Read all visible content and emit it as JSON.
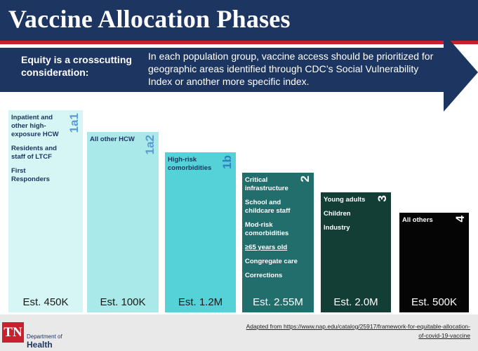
{
  "header": {
    "title": "Vaccine Allocation Phases"
  },
  "equity": {
    "label": "Equity is a crosscutting consideration:",
    "text": "In each population group, vaccine access should be prioritized for geographic areas identified through CDC’s Social Vulnerability Index or another more specific index."
  },
  "colors": {
    "navy": "#1d3561",
    "red": "#c8202f",
    "phase_1a1": "#d6f5f5",
    "phase_1a2": "#a9e9ea",
    "phase_1b": "#55d1d8",
    "phase_2": "#216e6d",
    "phase_3": "#123e36",
    "phase_4": "#050505"
  },
  "phases": [
    {
      "phase": "1a1",
      "items": [
        "Inpatient and other high-exposure HCW",
        "Residents and staff of LTCF",
        "First Responders"
      ],
      "estimate": "Est. 450K"
    },
    {
      "phase": "1a2",
      "items": [
        "All other HCW"
      ],
      "estimate": "Est. 100K"
    },
    {
      "phase": "1b",
      "items": [
        "High-risk comorbidities"
      ],
      "estimate": "Est. 1.2M"
    },
    {
      "phase": "2",
      "items": [
        "Critical infrastructure",
        "School and childcare staff",
        "Mod-risk comorbidities",
        "≥65 years old",
        "Congregate care",
        "Corrections"
      ],
      "estimate": "Est. 2.55M"
    },
    {
      "phase": "3",
      "items": [
        "Young adults",
        "Children",
        "Industry"
      ],
      "estimate": "Est. 2.0M"
    },
    {
      "phase": "4",
      "items": [
        "All others"
      ],
      "estimate": "Est. 500K"
    }
  ],
  "footer": {
    "logo_text": "TN",
    "dept_label": "Department of",
    "health_label": "Health",
    "source": "Adapted from https://www.nap.edu/catalog/25917/framework-for-equitable-allocation-of-covid-19-vaccine"
  }
}
